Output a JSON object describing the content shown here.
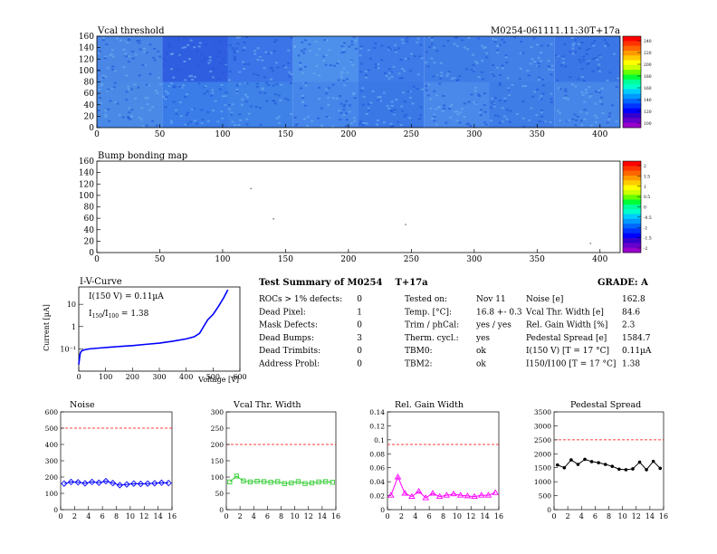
{
  "vcal_map": {
    "title": "Vcal threshold",
    "module_label": "M0254-061111.11:30T+17a",
    "x_ticks": [
      "0",
      "50",
      "100",
      "150",
      "200",
      "250",
      "300",
      "350",
      "400"
    ],
    "y_ticks": [
      "0",
      "20",
      "40",
      "60",
      "80",
      "100",
      "120",
      "140",
      "160"
    ],
    "palette_ticks": [
      "240",
      "220",
      "200",
      "180",
      "160",
      "140",
      "120",
      "100"
    ]
  },
  "bump_map": {
    "title": "Bump bonding map",
    "x_ticks": [
      "0",
      "50",
      "100",
      "150",
      "200",
      "250",
      "300",
      "350",
      "400"
    ],
    "y_ticks": [
      "0",
      "20",
      "40",
      "60",
      "80",
      "100",
      "120",
      "140",
      "160"
    ],
    "palette_ticks": [
      "2",
      "1.5",
      "1",
      "0.5",
      "0",
      "-0.5",
      "-1",
      "-1.5",
      "-2"
    ]
  },
  "iv": {
    "title": "I-V-Curve",
    "ylabel": "Current [µA]",
    "xlabel": "Voltage [V]",
    "annotation_current": "I(150 V) = 0.11µA",
    "annotation_ratio": "I",
    "annotation_ratio_sub1": "150",
    "annotation_ratio_mid": "/I",
    "annotation_ratio_sub2": "100",
    "annotation_ratio_val": " = 1.38",
    "x_ticks": [
      "0",
      "100",
      "200",
      "300",
      "400",
      "500",
      "600"
    ],
    "y_ticks": [
      "10",
      "1",
      "10⁻¹"
    ]
  },
  "summary": {
    "title": "Test Summary of M0254",
    "title_suffix": "T+17a",
    "grade": "GRADE:  A",
    "defects": [
      {
        "label": "ROCs > 1% defects:",
        "value": "0"
      },
      {
        "label": "Dead Pixel:",
        "value": "1"
      },
      {
        "label": "Mask Defects:",
        "value": "0"
      },
      {
        "label": "Dead Bumps:",
        "value": "3"
      },
      {
        "label": "Dead Trimbits:",
        "value": "0"
      },
      {
        "label": "Address Probl:",
        "value": "0"
      }
    ],
    "tests": [
      {
        "label": "Tested on:",
        "value": "Nov 11"
      },
      {
        "label": "Temp. [°C]:",
        "value": "16.8 +- 0.3"
      },
      {
        "label": "Trim / phCal:",
        "value": "yes / yes"
      },
      {
        "label": "Therm. cycl.:",
        "value": "yes"
      },
      {
        "label": "TBM0:",
        "value": "ok"
      },
      {
        "label": "TBM2:",
        "value": "ok"
      }
    ],
    "params": [
      {
        "label": "Noise [e]",
        "value": "162.8"
      },
      {
        "label": "Vcal Thr. Width [e]",
        "value": "84.6"
      },
      {
        "label": "Rel. Gain Width [%]",
        "value": "2.3"
      },
      {
        "label": "Pedestal Spread [e]",
        "value": "1584.7"
      },
      {
        "label": "I(150 V) [T = 17 °C]",
        "value": "0.11µA"
      },
      {
        "label": "I150/I100  [T = 17 °C]",
        "value": "1.38"
      }
    ]
  },
  "chart_data": [
    {
      "type": "line",
      "title": "Noise",
      "x": [
        0.5,
        1.5,
        2.5,
        3.5,
        4.5,
        5.5,
        6.5,
        7.5,
        8.5,
        9.5,
        10.5,
        11.5,
        12.5,
        13.5,
        14.5,
        15.5
      ],
      "values": [
        160,
        170,
        168,
        162,
        170,
        165,
        175,
        163,
        150,
        155,
        160,
        158,
        160,
        162,
        165,
        163
      ],
      "xlim": [
        0,
        16
      ],
      "ylim": [
        0,
        600
      ],
      "reference_line": 500,
      "x_ticks": [
        "0",
        "2",
        "4",
        "6",
        "8",
        "10",
        "12",
        "14",
        "16"
      ],
      "y_ticks": [
        "0",
        "100",
        "200",
        "300",
        "400",
        "500",
        "600"
      ],
      "color": "#0000ff",
      "marker": "diamond"
    },
    {
      "type": "line",
      "title": "Vcal Thr. Width",
      "x": [
        0.5,
        1.5,
        2.5,
        3.5,
        4.5,
        5.5,
        6.5,
        7.5,
        8.5,
        9.5,
        10.5,
        11.5,
        12.5,
        13.5,
        14.5,
        15.5
      ],
      "values": [
        85,
        103,
        88,
        85,
        87,
        86,
        84,
        86,
        80,
        82,
        86,
        80,
        82,
        85,
        86,
        84
      ],
      "xlim": [
        0,
        16
      ],
      "ylim": [
        0,
        300
      ],
      "reference_line": 200,
      "x_ticks": [
        "0",
        "2",
        "4",
        "6",
        "8",
        "10",
        "12",
        "14",
        "16"
      ],
      "y_ticks": [
        "0",
        "50",
        "100",
        "150",
        "200",
        "250",
        "300"
      ],
      "color": "#33cc33",
      "marker": "square"
    },
    {
      "type": "line",
      "title": "Rel. Gain Width",
      "x": [
        0.5,
        1.5,
        2.5,
        3.5,
        4.5,
        5.5,
        6.5,
        7.5,
        8.5,
        9.5,
        10.5,
        11.5,
        12.5,
        13.5,
        14.5,
        15.5
      ],
      "values": [
        0.022,
        0.05,
        0.025,
        0.02,
        0.028,
        0.018,
        0.025,
        0.02,
        0.022,
        0.024,
        0.022,
        0.021,
        0.02,
        0.022,
        0.022,
        0.026
      ],
      "xlim": [
        0,
        16
      ],
      "ylim": [
        0,
        0.15
      ],
      "reference_line": 0.1,
      "x_ticks": [
        "0",
        "2",
        "4",
        "6",
        "8",
        "10",
        "12",
        "14",
        "16"
      ],
      "y_ticks": [
        "0",
        "0.02",
        "0.04",
        "0.06",
        "0.08",
        "0.1",
        "0.12",
        "0.14"
      ],
      "color": "#ff00ff",
      "marker": "triangle"
    },
    {
      "type": "line",
      "title": "Pedestal Spread",
      "x": [
        0.5,
        1.5,
        2.5,
        3.5,
        4.5,
        5.5,
        6.5,
        7.5,
        8.5,
        9.5,
        10.5,
        11.5,
        12.5,
        13.5,
        14.5,
        15.5
      ],
      "values": [
        1600,
        1500,
        1780,
        1620,
        1800,
        1720,
        1680,
        1620,
        1550,
        1450,
        1430,
        1460,
        1700,
        1430,
        1730,
        1480
      ],
      "xlim": [
        0,
        16
      ],
      "ylim": [
        0,
        3500
      ],
      "reference_line": 2500,
      "x_ticks": [
        "0",
        "2",
        "4",
        "6",
        "8",
        "10",
        "12",
        "14",
        "16"
      ],
      "y_ticks": [
        "0",
        "500",
        "1000",
        "1500",
        "2000",
        "2500",
        "3000",
        "3500"
      ],
      "color": "#000000",
      "marker": "circle"
    }
  ],
  "iv_data": {
    "type": "line",
    "voltage": [
      0,
      5,
      10,
      20,
      40,
      80,
      120,
      160,
      200,
      250,
      300,
      350,
      400,
      430,
      450,
      460,
      480,
      500,
      520,
      540,
      555
    ],
    "current": [
      0.02,
      0.06,
      0.08,
      0.09,
      0.1,
      0.11,
      0.12,
      0.13,
      0.14,
      0.16,
      0.18,
      0.22,
      0.28,
      0.35,
      0.5,
      0.8,
      2,
      3.5,
      8,
      20,
      45
    ],
    "xlim": [
      0,
      600
    ],
    "color": "#0000ff"
  },
  "hot_pixels": [
    {
      "col": 122,
      "row": 113
    },
    {
      "col": 140,
      "row": 60
    },
    {
      "col": 245,
      "row": 50
    },
    {
      "col": 392,
      "row": 17
    }
  ]
}
